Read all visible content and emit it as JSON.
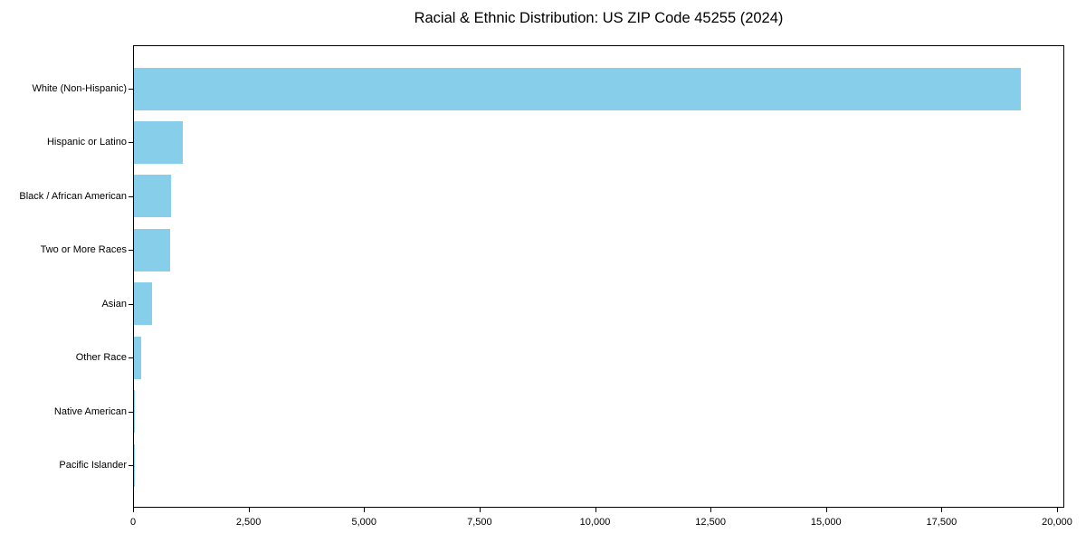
{
  "chart_data": {
    "type": "bar",
    "orientation": "horizontal",
    "title": "Racial & Ethnic Distribution: US ZIP Code 45255 (2024)",
    "categories": [
      "White (Non-Hispanic)",
      "Hispanic or Latino",
      "Black / African American",
      "Two or More Races",
      "Asian",
      "Other Race",
      "Native American",
      "Pacific Islander"
    ],
    "values": [
      19200,
      1060,
      810,
      790,
      400,
      150,
      25,
      10
    ],
    "xlabel": "",
    "ylabel": "",
    "xlim": [
      0,
      20160
    ],
    "xticks": [
      0,
      2500,
      5000,
      7500,
      10000,
      12500,
      15000,
      17500,
      20000
    ],
    "xtick_labels": [
      "0",
      "2,500",
      "5,000",
      "7,500",
      "10,000",
      "12,500",
      "15,000",
      "17,500",
      "20,000"
    ],
    "grid": false,
    "legend_position": "none",
    "colors": {
      "bar": "#87CEEB",
      "axis": "#000000",
      "text": "#000000",
      "background": "#FFFFFF"
    }
  }
}
